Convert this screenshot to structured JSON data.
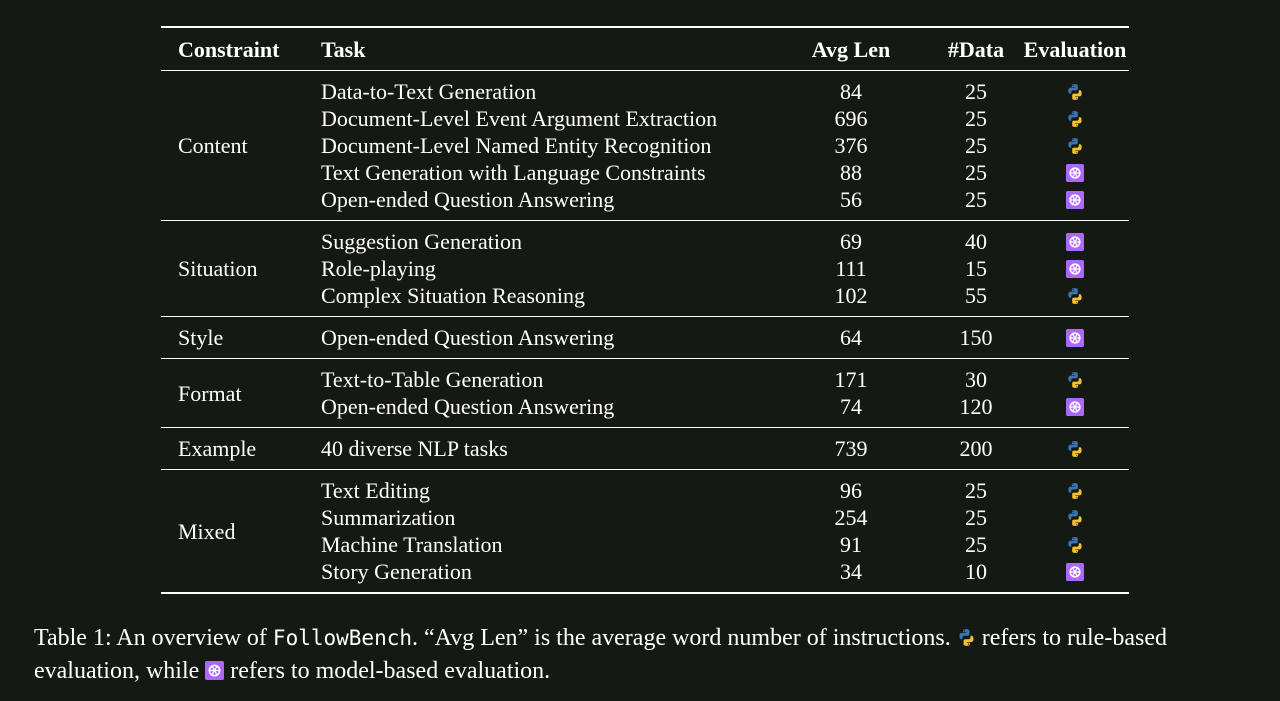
{
  "table": {
    "headers": {
      "constraint": "Constraint",
      "task": "Task",
      "avg_len": "Avg Len",
      "num_data": "#Data",
      "evaluation": "Evaluation"
    },
    "groups": [
      {
        "constraint": "Content",
        "rows": [
          {
            "task": "Data-to-Text Generation",
            "avg_len": "84",
            "num_data": "25",
            "evaluation": "python-icon"
          },
          {
            "task": "Document-Level Event Argument Extraction",
            "avg_len": "696",
            "num_data": "25",
            "evaluation": "python-icon"
          },
          {
            "task": "Document-Level Named Entity Recognition",
            "avg_len": "376",
            "num_data": "25",
            "evaluation": "python-icon"
          },
          {
            "task": "Text Generation with Language Constraints",
            "avg_len": "88",
            "num_data": "25",
            "evaluation": "openai-icon"
          },
          {
            "task": "Open-ended Question Answering",
            "avg_len": "56",
            "num_data": "25",
            "evaluation": "openai-icon"
          }
        ]
      },
      {
        "constraint": "Situation",
        "rows": [
          {
            "task": "Suggestion Generation",
            "avg_len": "69",
            "num_data": "40",
            "evaluation": "openai-icon"
          },
          {
            "task": "Role-playing",
            "avg_len": "111",
            "num_data": "15",
            "evaluation": "openai-icon"
          },
          {
            "task": "Complex Situation Reasoning",
            "avg_len": "102",
            "num_data": "55",
            "evaluation": "python-icon"
          }
        ]
      },
      {
        "constraint": "Style",
        "rows": [
          {
            "task": "Open-ended Question Answering",
            "avg_len": "64",
            "num_data": "150",
            "evaluation": "openai-icon"
          }
        ]
      },
      {
        "constraint": "Format",
        "rows": [
          {
            "task": "Text-to-Table Generation",
            "avg_len": "171",
            "num_data": "30",
            "evaluation": "python-icon"
          },
          {
            "task": "Open-ended Question Answering",
            "avg_len": "74",
            "num_data": "120",
            "evaluation": "openai-icon"
          }
        ]
      },
      {
        "constraint": "Example",
        "rows": [
          {
            "task": "40 diverse NLP tasks",
            "avg_len": "739",
            "num_data": "200",
            "evaluation": "python-icon"
          }
        ]
      },
      {
        "constraint": "Mixed",
        "rows": [
          {
            "task": "Text Editing",
            "avg_len": "96",
            "num_data": "25",
            "evaluation": "python-icon"
          },
          {
            "task": "Summarization",
            "avg_len": "254",
            "num_data": "25",
            "evaluation": "python-icon"
          },
          {
            "task": "Machine Translation",
            "avg_len": "91",
            "num_data": "25",
            "evaluation": "python-icon"
          },
          {
            "task": "Story Generation",
            "avg_len": "34",
            "num_data": "10",
            "evaluation": "openai-icon"
          }
        ]
      }
    ]
  },
  "caption": {
    "label": "Table 1:",
    "text_a": " An overview of ",
    "benchmark": "FollowBench",
    "text_b": ". “Avg Len” is the average word number of instructions. ",
    "text_c": " refers to rule-based evaluation, while ",
    "text_d": " refers to model-based evaluation.",
    "rule_icon": "python-icon",
    "model_icon": "openai-icon"
  },
  "colors": {
    "background": "#141a13",
    "text": "#ffffff",
    "python_blue": "#3a75b0",
    "python_yellow": "#f5c12e",
    "openai_purple": "#ab68ff"
  }
}
